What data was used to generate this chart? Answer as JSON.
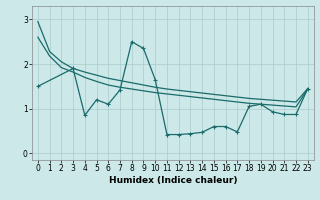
{
  "xlabel": "Humidex (Indice chaleur)",
  "bg_color": "#cce8e8",
  "grid_color": "#aacccc",
  "line_color": "#1a6b6b",
  "xlim": [
    -0.5,
    23.5
  ],
  "ylim": [
    -0.15,
    3.3
  ],
  "yticks": [
    0,
    1,
    2,
    3
  ],
  "xticks": [
    0,
    1,
    2,
    3,
    4,
    5,
    6,
    7,
    8,
    9,
    10,
    11,
    12,
    13,
    14,
    15,
    16,
    17,
    18,
    19,
    20,
    21,
    22,
    23
  ],
  "line1_x": [
    0,
    1,
    2,
    3,
    4,
    5,
    6,
    7,
    8,
    9,
    10,
    11,
    12,
    13,
    14,
    15,
    16,
    17,
    18,
    19,
    20,
    21,
    22,
    23
  ],
  "line1_y": [
    2.95,
    2.28,
    2.05,
    1.9,
    1.82,
    1.75,
    1.68,
    1.63,
    1.58,
    1.53,
    1.48,
    1.44,
    1.41,
    1.38,
    1.35,
    1.32,
    1.29,
    1.26,
    1.23,
    1.21,
    1.19,
    1.17,
    1.15,
    1.45
  ],
  "line2_x": [
    0,
    1,
    2,
    3,
    4,
    5,
    6,
    7,
    8,
    9,
    10,
    11,
    12,
    13,
    14,
    15,
    16,
    17,
    18,
    19,
    20,
    21,
    22,
    23
  ],
  "line2_y": [
    2.6,
    2.18,
    1.92,
    1.82,
    1.7,
    1.61,
    1.53,
    1.48,
    1.44,
    1.4,
    1.36,
    1.33,
    1.3,
    1.27,
    1.24,
    1.21,
    1.18,
    1.15,
    1.12,
    1.1,
    1.08,
    1.06,
    1.04,
    1.44
  ],
  "line3_x": [
    0,
    3,
    4,
    5,
    6,
    7,
    8,
    9,
    10,
    11,
    12,
    13,
    14,
    15,
    16,
    17,
    18,
    19,
    20,
    21,
    22,
    23
  ],
  "line3_y": [
    1.5,
    1.9,
    0.85,
    1.2,
    1.1,
    1.42,
    2.5,
    2.35,
    1.65,
    0.42,
    0.42,
    0.44,
    0.47,
    0.6,
    0.6,
    0.48,
    1.05,
    1.1,
    0.93,
    0.87,
    0.87,
    1.45
  ]
}
